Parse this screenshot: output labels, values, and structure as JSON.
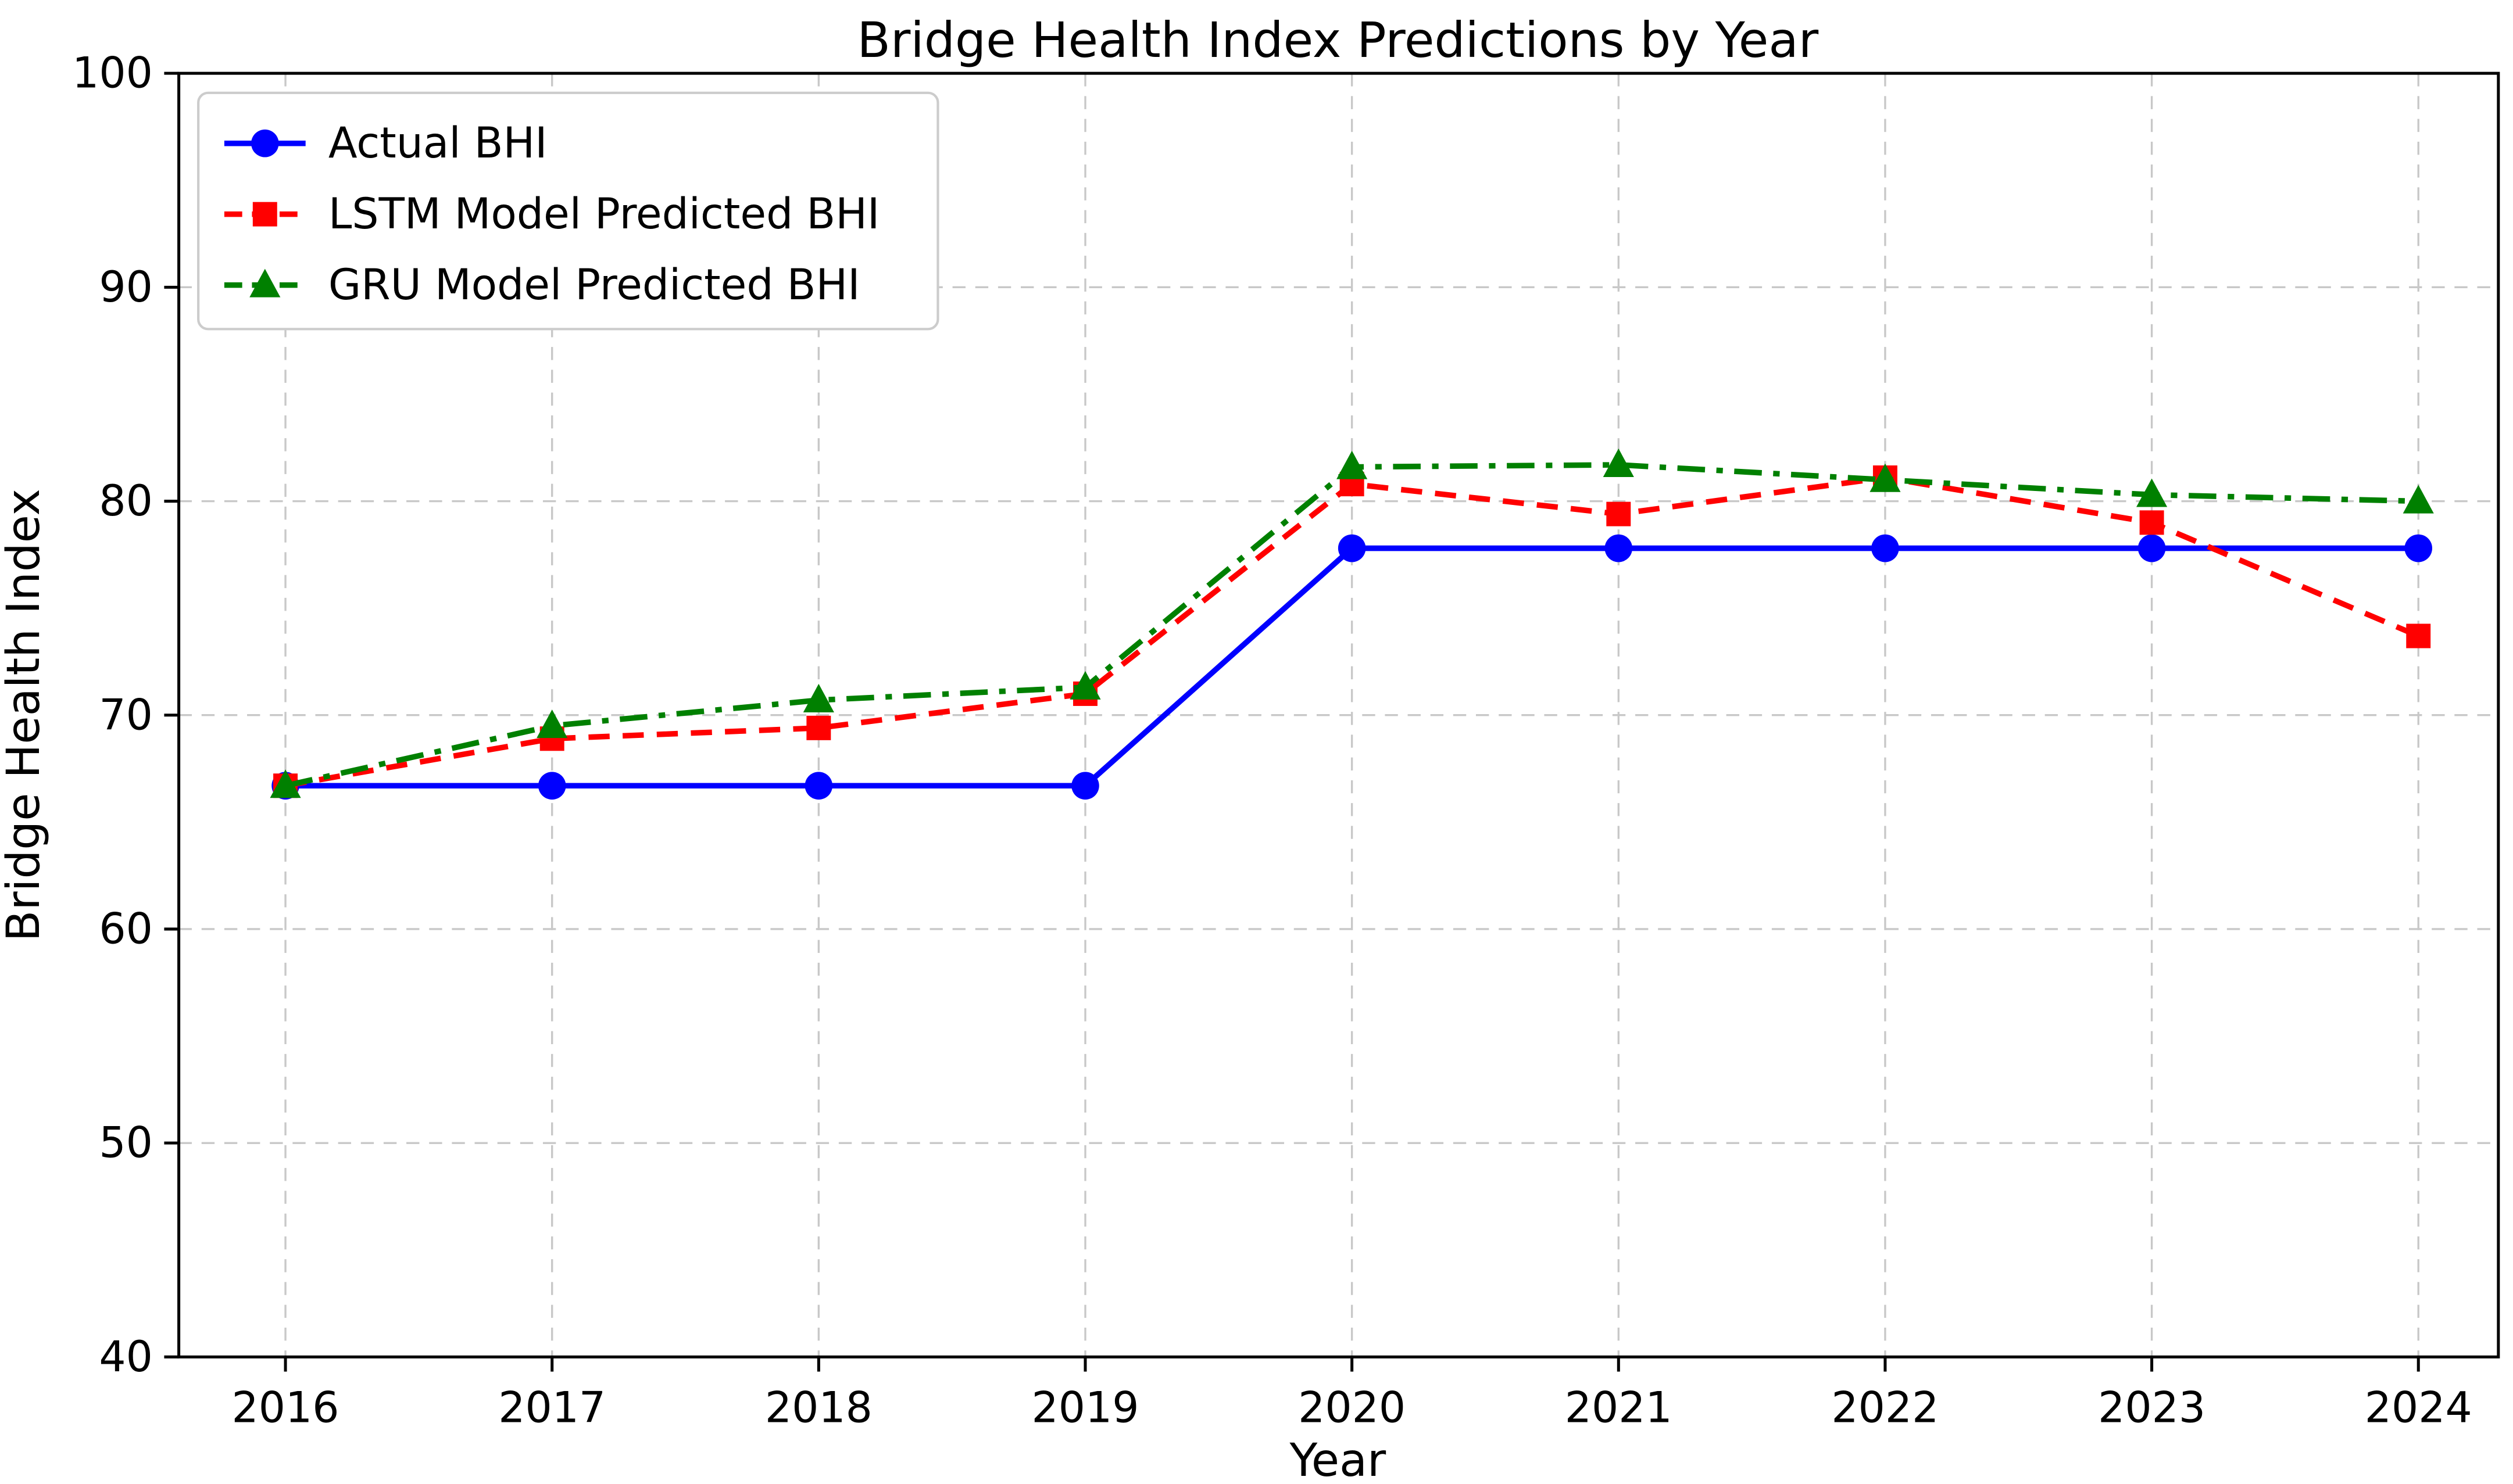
{
  "figure": {
    "title": "Bridge Health Index Predictions by Year",
    "xlabel": "Year",
    "ylabel": "Bridge Health Index"
  },
  "chart_data": {
    "type": "line",
    "title": "Bridge Health Index Predictions by Year",
    "xlabel": "Year",
    "ylabel": "Bridge Health Index",
    "x": [
      2016,
      2017,
      2018,
      2019,
      2020,
      2021,
      2022,
      2023,
      2024
    ],
    "xticks": [
      "2016",
      "2017",
      "2018",
      "2019",
      "2020",
      "2021",
      "2022",
      "2023",
      "2024"
    ],
    "yticks": [
      40,
      50,
      60,
      70,
      80,
      90,
      100
    ],
    "xlim": [
      2015.6,
      2024.3
    ],
    "ylim": [
      40,
      100
    ],
    "grid": true,
    "grid_color": "#c8c8c8",
    "legend_position": "upper-left",
    "series": [
      {
        "name": "Actual BHI",
        "color": "#0000ff",
        "linestyle": "solid",
        "marker": "circle",
        "values": [
          66.7,
          66.7,
          66.7,
          66.7,
          77.8,
          77.8,
          77.8,
          77.8,
          77.8
        ]
      },
      {
        "name": "LSTM Model Predicted BHI",
        "color": "#ff0000",
        "linestyle": "dashed",
        "marker": "square",
        "values": [
          66.7,
          68.9,
          69.4,
          71.0,
          80.8,
          79.4,
          81.1,
          79.0,
          73.7
        ]
      },
      {
        "name": "GRU Model Predicted BHI",
        "color": "#008000",
        "linestyle": "dashdot",
        "marker": "triangle-up",
        "values": [
          66.7,
          69.5,
          70.7,
          71.3,
          81.6,
          81.7,
          81.0,
          80.3,
          80.0
        ]
      }
    ]
  }
}
